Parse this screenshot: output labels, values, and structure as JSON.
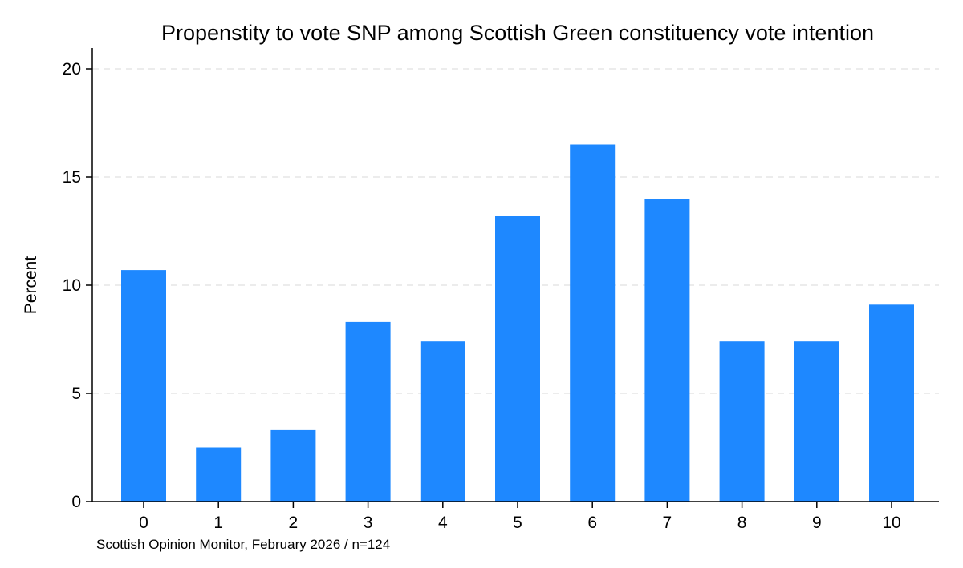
{
  "chart_data": {
    "type": "bar",
    "title": "Propenstity to vote SNP among Scottish Green constituency vote intention",
    "xlabel": "",
    "ylabel": "Percent",
    "categories": [
      "0",
      "1",
      "2",
      "3",
      "4",
      "5",
      "6",
      "7",
      "8",
      "9",
      "10"
    ],
    "values": [
      10.7,
      2.5,
      3.3,
      8.3,
      7.4,
      13.2,
      16.5,
      14.0,
      7.4,
      7.4,
      9.1
    ],
    "ylim": [
      0,
      20
    ],
    "yticks": [
      0,
      5,
      10,
      15,
      20
    ],
    "ytick_labels": [
      "0",
      "5",
      "10",
      "15",
      "20"
    ],
    "grid": "horizontal dashed",
    "bar_color": "#1e88ff",
    "note": "Scottish Opinion Monitor, February 2026 / n=124"
  }
}
